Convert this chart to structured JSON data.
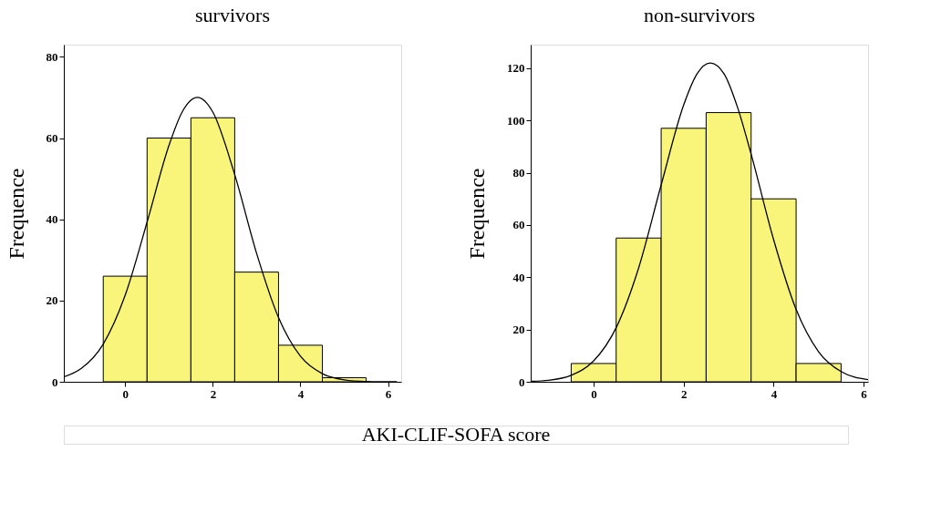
{
  "chart_data": [
    {
      "type": "histogram",
      "title": "survivors",
      "ylabel": "Frequence",
      "xlabel": "AKI-CLIF-SOFA score",
      "bins": [
        -0.5,
        0.5,
        1.5,
        2.5,
        3.5,
        4.5,
        5.5
      ],
      "values": [
        26,
        60,
        65,
        27,
        9,
        1
      ],
      "color": "#f9f57a",
      "series": [
        {
          "type": "line",
          "color": "#000000",
          "x": [
            -1.4,
            -1,
            -0.5,
            0,
            0.5,
            1,
            1.3,
            1.65,
            2,
            2.5,
            3,
            3.5,
            4,
            4.5,
            5,
            5.5,
            6.2
          ],
          "values": [
            1.2,
            3.3,
            9.3,
            21.3,
            39.3,
            58.2,
            66.4,
            70,
            66.4,
            51.0,
            31.6,
            15.8,
            6.3,
            2.0,
            0.5,
            0.1,
            0
          ]
        }
      ],
      "xlim": [
        -1.4,
        6.3
      ],
      "xticks": [
        0,
        2,
        4,
        6
      ],
      "ylim": [
        0,
        83
      ],
      "yticks": [
        0,
        20,
        40,
        60,
        80
      ],
      "grid": false
    },
    {
      "type": "histogram",
      "title": "non-survivors",
      "ylabel": "Frequence",
      "bins": [
        -0.5,
        0.5,
        1.5,
        2.5,
        3.5,
        4.5,
        5.5
      ],
      "values": [
        7,
        55,
        97,
        103,
        70,
        7
      ],
      "color": "#f9f57a",
      "series": [
        {
          "type": "line",
          "color": "#000000",
          "x": [
            -1.4,
            -1,
            -0.5,
            0,
            0.5,
            1,
            1.5,
            2,
            2.3,
            2.59,
            2.9,
            3.2,
            3.5,
            4,
            4.5,
            5,
            5.5,
            6.1
          ],
          "values": [
            0.2,
            0.6,
            2.5,
            8.0,
            20.7,
            43.6,
            75.3,
            105.9,
            117.9,
            122,
            117.8,
            104.9,
            87.1,
            54.4,
            27.7,
            11.5,
            3.9,
            0.8
          ]
        }
      ],
      "xlim": [
        -1.4,
        6.1
      ],
      "xticks": [
        0,
        2,
        4,
        6
      ],
      "ylim": [
        0,
        129
      ],
      "yticks": [
        0,
        20,
        40,
        60,
        80,
        100,
        120
      ],
      "grid": false
    }
  ]
}
